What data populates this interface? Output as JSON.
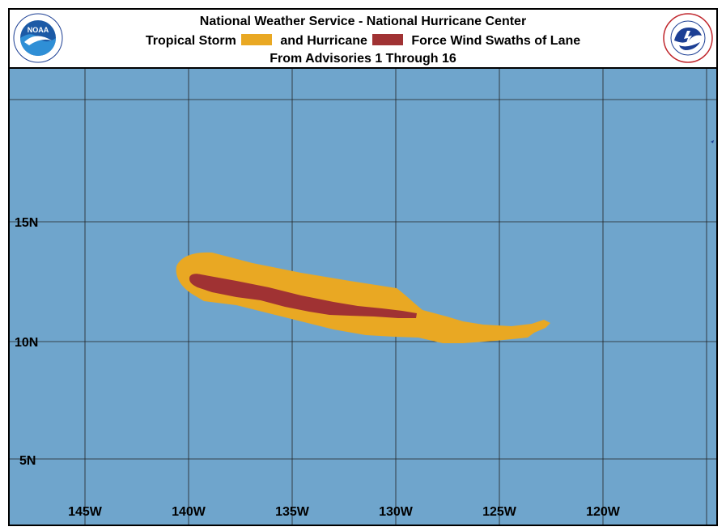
{
  "header": {
    "line1": "National Weather Service - National Hurricane Center",
    "line2_a": "Tropical Storm",
    "line2_b": "and Hurricane",
    "line2_c": "Force Wind Swaths of Lane",
    "line3": "From Advisories 1 Through 16"
  },
  "logos": {
    "left": "noaa-logo",
    "left_text": "NOAA",
    "right": "nws-logo"
  },
  "colors": {
    "ocean": "#6fa5cc",
    "tropical_storm": "#e9a823",
    "hurricane": "#a03233",
    "grid": "#222222"
  },
  "map": {
    "lat_labels": [
      "15N",
      "10N",
      "5N"
    ],
    "lon_labels": [
      "145W",
      "140W",
      "135W",
      "130W",
      "125W",
      "120W"
    ]
  }
}
